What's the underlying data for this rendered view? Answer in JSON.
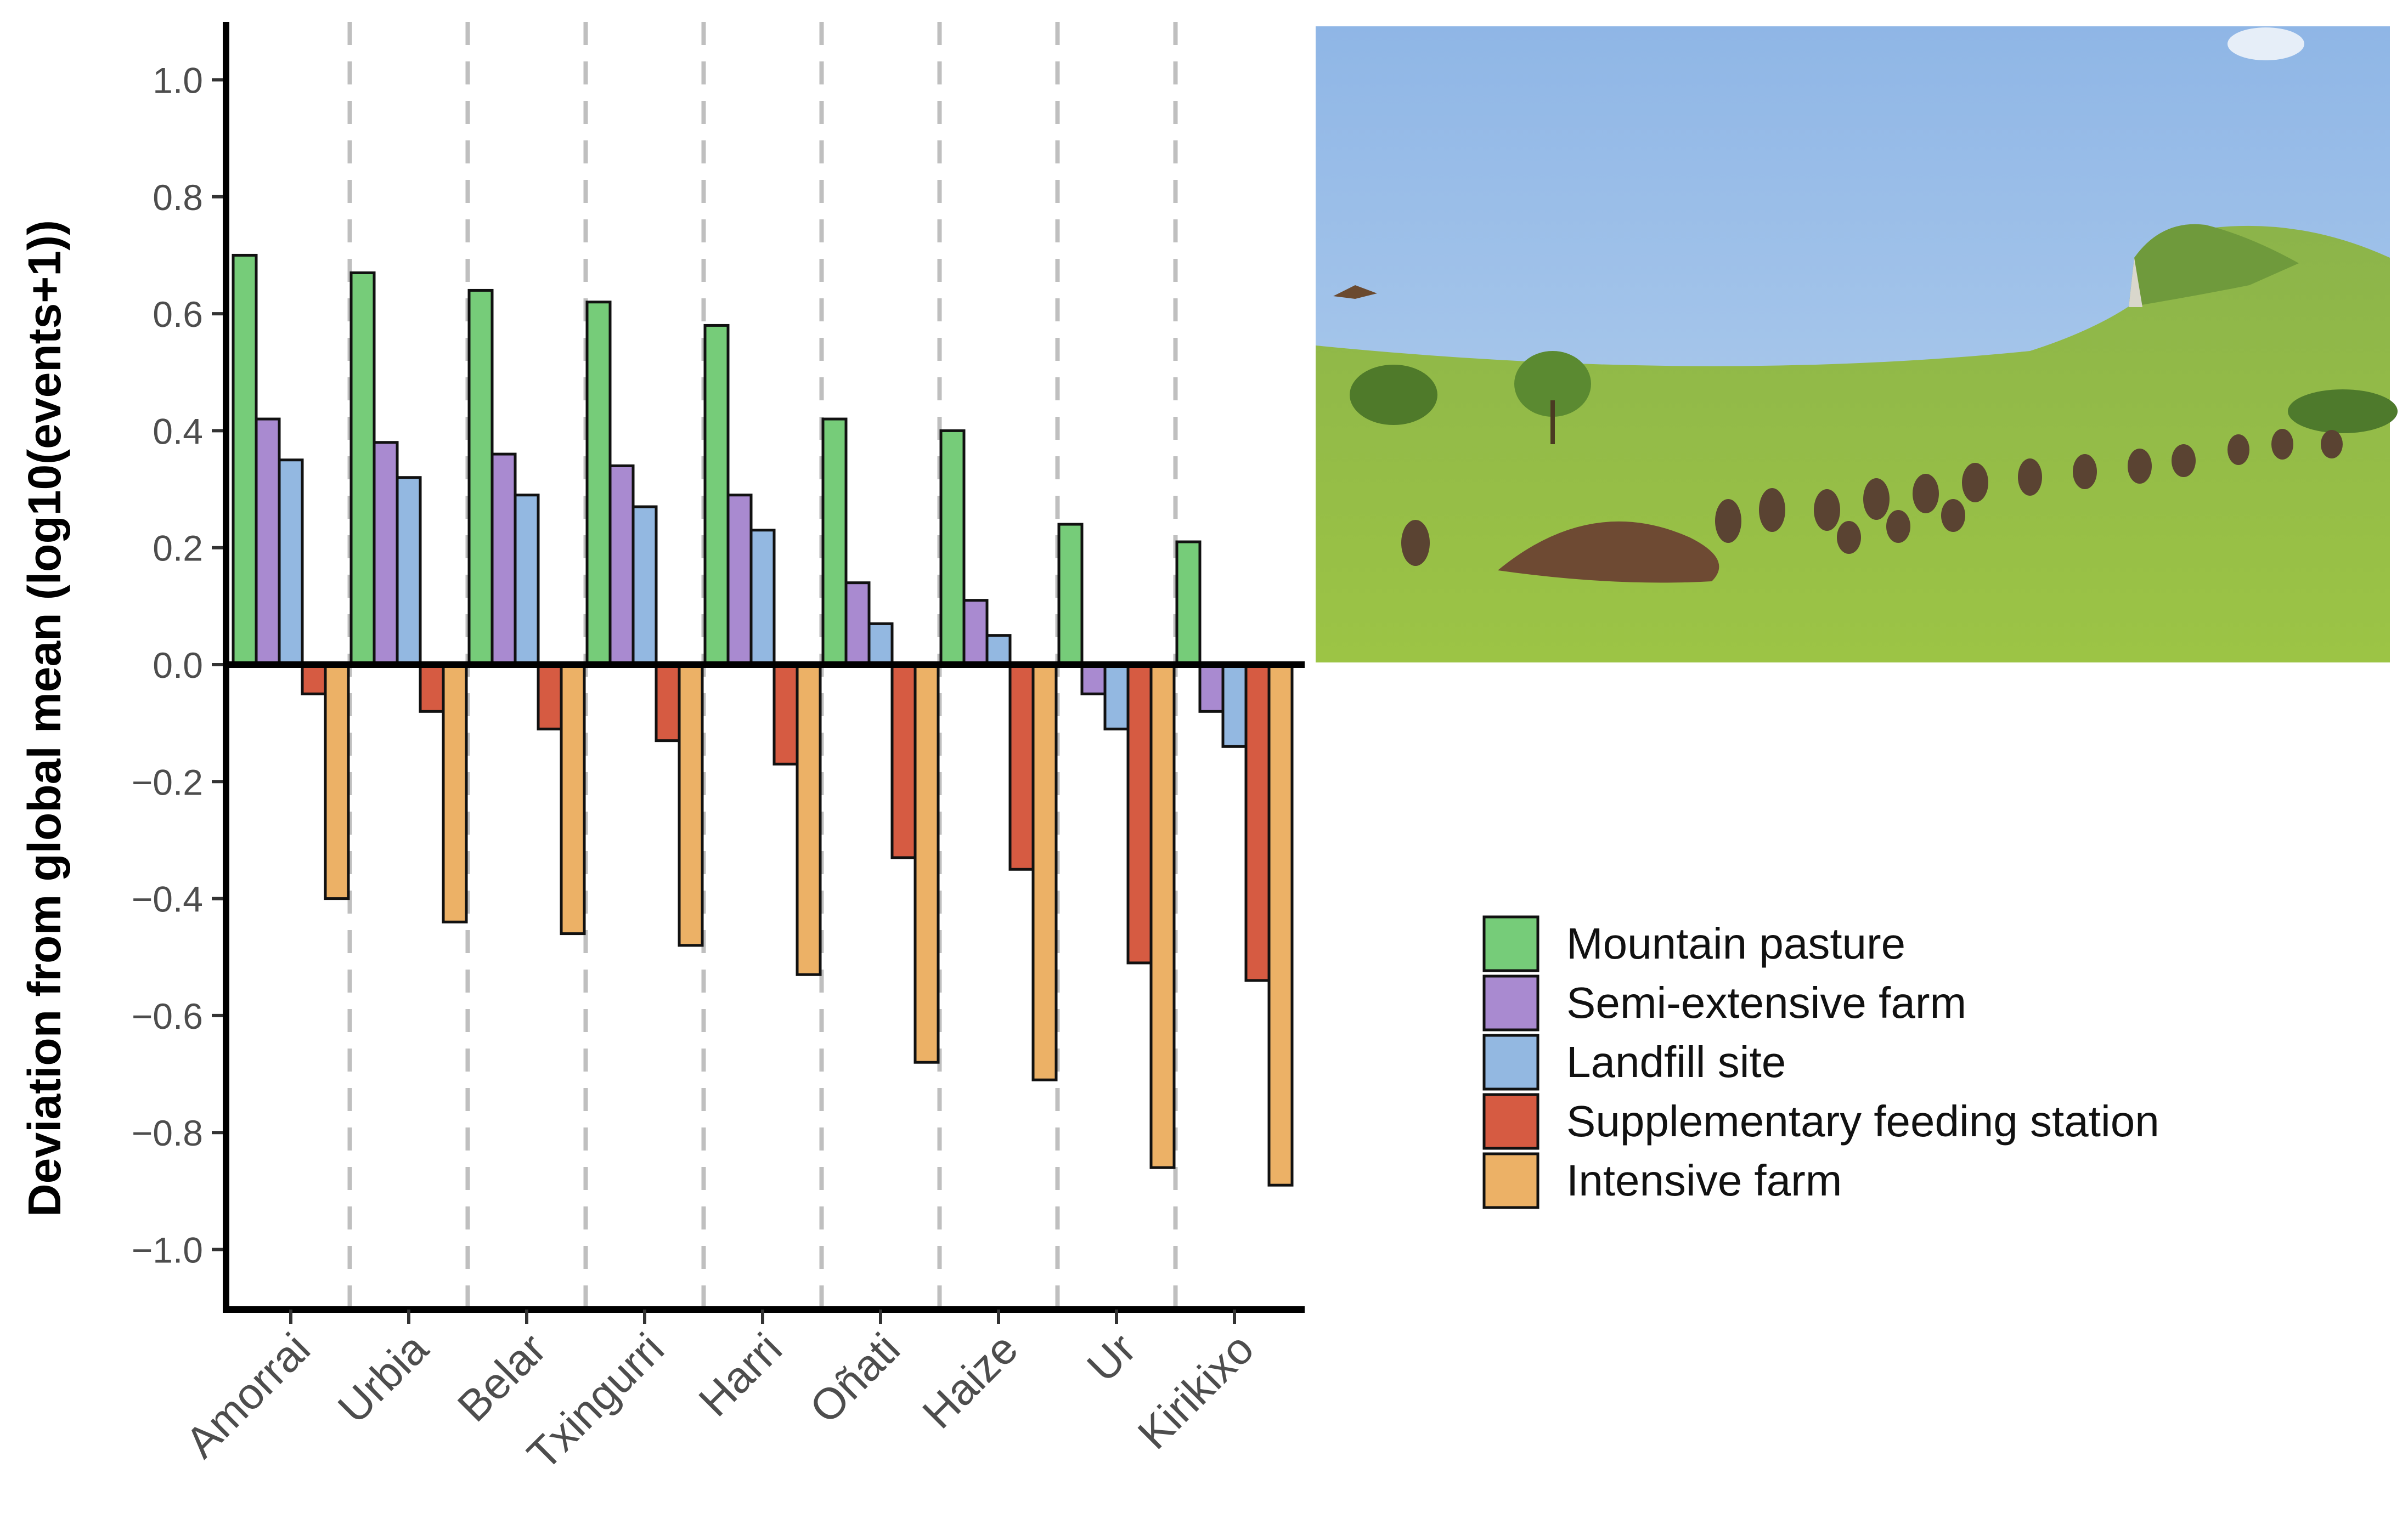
{
  "chart_data": {
    "type": "bar",
    "title": "",
    "ylabel": "Deviation from global mean (log10(events+1))",
    "xlabel": "",
    "ylim": [
      -1.1,
      1.1
    ],
    "yticks": [
      1.0,
      0.8,
      0.6,
      0.4,
      0.2,
      0.0,
      -0.2,
      -0.4,
      -0.6,
      -0.8,
      -1.0
    ],
    "ytick_labels": [
      "1.0",
      "0.8",
      "0.6",
      "0.4",
      "0.2",
      "0.0",
      "−0.2",
      "−0.4",
      "−0.6",
      "−0.8",
      "−1.0"
    ],
    "categories": [
      "Amorrai",
      "Urbia",
      "Belar",
      "Txingurri",
      "Harri",
      "Oñati",
      "Haize",
      "Ur",
      "Kirikixo"
    ],
    "series": [
      {
        "name": "Mountain pasture",
        "color": "#76cc79",
        "values": [
          0.7,
          0.67,
          0.64,
          0.62,
          0.58,
          0.42,
          0.4,
          0.24,
          0.21
        ]
      },
      {
        "name": "Semi-extensive farm",
        "color": "#a98ad0",
        "values": [
          0.42,
          0.38,
          0.36,
          0.34,
          0.29,
          0.14,
          0.11,
          -0.05,
          -0.08
        ]
      },
      {
        "name": "Landfill site",
        "color": "#93b8e1",
        "values": [
          0.35,
          0.32,
          0.29,
          0.27,
          0.23,
          0.07,
          0.05,
          -0.11,
          -0.14
        ]
      },
      {
        "name": "Supplementary feeding station",
        "color": "#d65b42",
        "values": [
          -0.05,
          -0.08,
          -0.11,
          -0.13,
          -0.17,
          -0.33,
          -0.35,
          -0.51,
          -0.54
        ]
      },
      {
        "name": "Intensive farm",
        "color": "#ecb166",
        "values": [
          -0.4,
          -0.44,
          -0.46,
          -0.48,
          -0.53,
          -0.68,
          -0.71,
          -0.86,
          -0.89
        ]
      }
    ],
    "grid": false,
    "group_separators": "dashed vertical lines",
    "legend_position": "right"
  },
  "photo": {
    "subject": "vultures-feeding-on-carcass-mountain-pasture"
  }
}
